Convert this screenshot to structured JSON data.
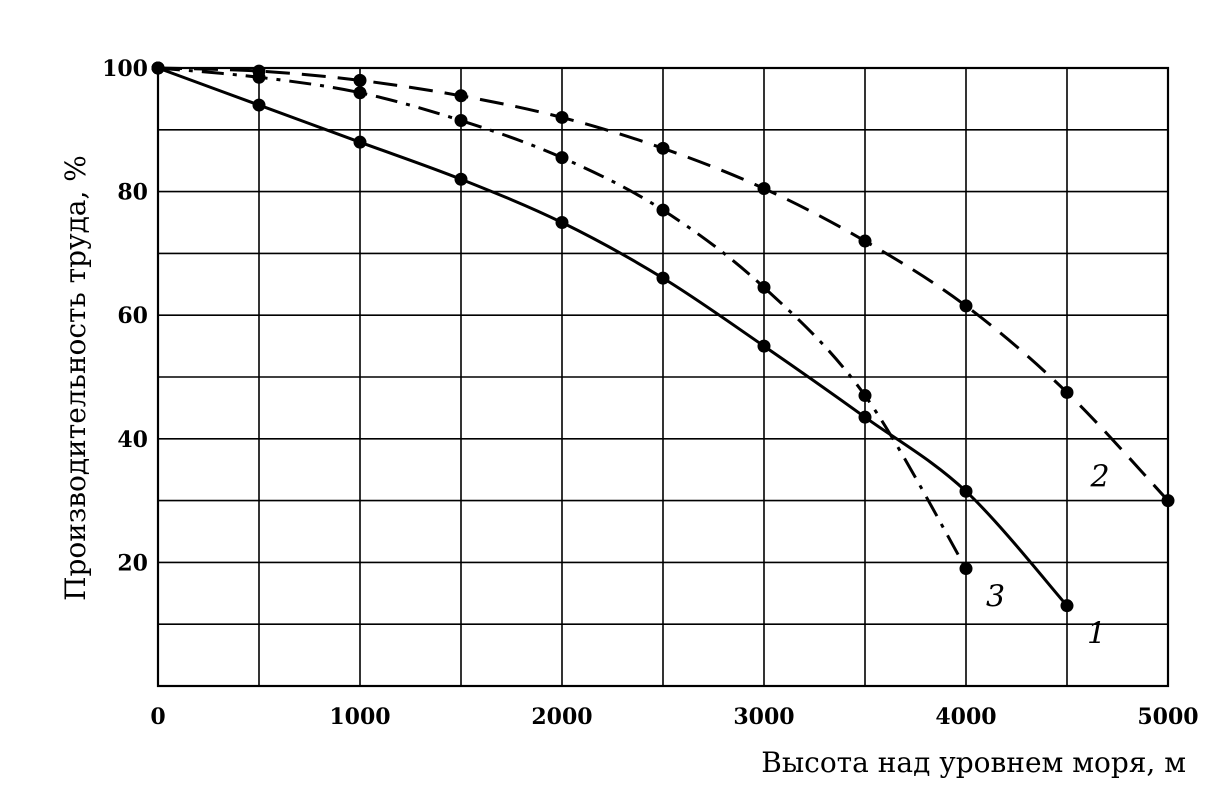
{
  "chart_data": {
    "type": "line",
    "title": "",
    "xlabel": "Высота над уровнем моря, м",
    "ylabel": "Производительность труда, %",
    "xlim": [
      0,
      5000
    ],
    "ylim": [
      0,
      100
    ],
    "x_ticks": [
      0,
      1000,
      2000,
      3000,
      4000,
      5000
    ],
    "x_tick_labels": [
      "0",
      "1000",
      "2000",
      "3000",
      "4000",
      "5000"
    ],
    "y_ticks": [
      20,
      40,
      60,
      80,
      100
    ],
    "y_tick_labels": [
      "20",
      "40",
      "60",
      "80",
      "100"
    ],
    "grid": true,
    "x_grid_step": 500,
    "y_grid_step": 10,
    "series": [
      {
        "name": "1",
        "line_style": "solid",
        "label_position": "right",
        "x": [
          0,
          500,
          1000,
          1500,
          2000,
          2500,
          3000,
          3500,
          4000,
          4500
        ],
        "y": [
          100,
          94,
          88,
          82,
          75,
          66,
          55,
          43.5,
          31.5,
          13
        ]
      },
      {
        "name": "2",
        "line_style": "dashed",
        "label_position": "left",
        "x": [
          0,
          500,
          1000,
          1500,
          2000,
          2500,
          3000,
          3500,
          4000,
          4500,
          5000
        ],
        "y": [
          100,
          99.5,
          98,
          95.5,
          92,
          87,
          80.5,
          72,
          61.5,
          47.5,
          30
        ]
      },
      {
        "name": "3",
        "line_style": "dash-dot",
        "label_position": "right",
        "x": [
          0,
          500,
          1000,
          1500,
          2000,
          2500,
          3000,
          3500,
          4000
        ],
        "y": [
          100,
          98.5,
          96,
          91.5,
          85.5,
          77,
          64.5,
          47,
          19
        ]
      }
    ]
  }
}
